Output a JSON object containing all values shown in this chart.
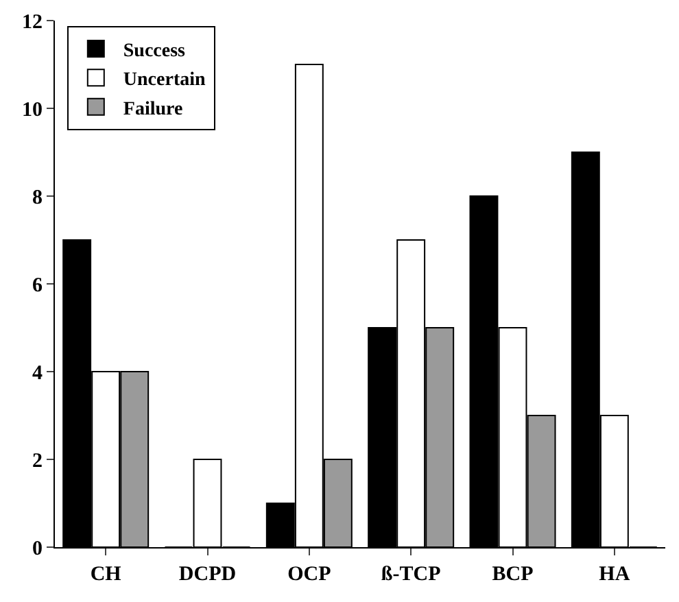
{
  "chart_data": {
    "type": "bar",
    "categories": [
      "CH",
      "DCPD",
      "OCP",
      "ß-TCP",
      "BCP",
      "HA"
    ],
    "series": [
      {
        "name": "Success",
        "color": "#000000",
        "values": [
          7,
          0,
          1,
          5,
          8,
          9
        ]
      },
      {
        "name": "Uncertain",
        "color": "#ffffff",
        "values": [
          4,
          2,
          11,
          7,
          5,
          3
        ]
      },
      {
        "name": "Failure",
        "color": "#9a9a9a",
        "values": [
          4,
          0,
          2,
          5,
          3,
          0
        ]
      }
    ],
    "ylim": [
      0,
      12
    ],
    "yticks": [
      0,
      2,
      4,
      6,
      8,
      10,
      12
    ],
    "grid": false,
    "legend": "top left"
  }
}
